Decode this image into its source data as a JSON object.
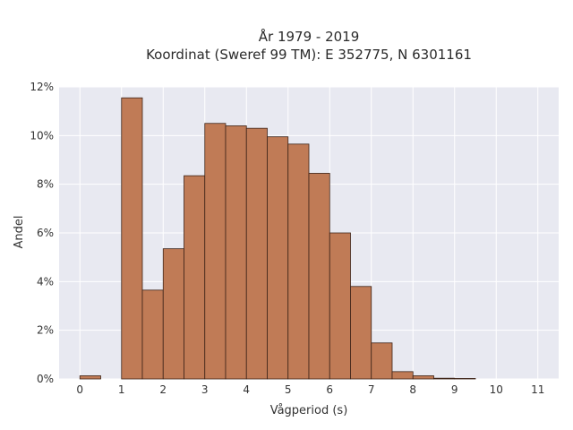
{
  "chart_data": {
    "type": "bar",
    "title": "År 1979 - 2019",
    "subtitle": "Koordinat (Sweref 99 TM): E 352775, N 6301161",
    "xlabel": "Vågperiod (s)",
    "ylabel": "Andel",
    "xlim": [
      -0.5,
      11.5
    ],
    "ylim": [
      0,
      12
    ],
    "x_ticks": [
      "0",
      "1",
      "2",
      "3",
      "4",
      "5",
      "6",
      "7",
      "8",
      "9",
      "10",
      "11"
    ],
    "y_ticks": [
      "0%",
      "2%",
      "4%",
      "6%",
      "8%",
      "10%",
      "12%"
    ],
    "bin_width": 0.5,
    "bins": [
      {
        "x": 0.0,
        "y": 0.13
      },
      {
        "x": 1.0,
        "y": 11.55
      },
      {
        "x": 1.5,
        "y": 3.65
      },
      {
        "x": 2.0,
        "y": 5.35
      },
      {
        "x": 2.5,
        "y": 8.35
      },
      {
        "x": 3.0,
        "y": 10.5
      },
      {
        "x": 3.5,
        "y": 10.4
      },
      {
        "x": 4.0,
        "y": 10.3
      },
      {
        "x": 4.5,
        "y": 9.95
      },
      {
        "x": 5.0,
        "y": 9.65
      },
      {
        "x": 5.5,
        "y": 8.45
      },
      {
        "x": 6.0,
        "y": 6.0
      },
      {
        "x": 6.5,
        "y": 3.8
      },
      {
        "x": 7.0,
        "y": 1.48
      },
      {
        "x": 7.5,
        "y": 0.3
      },
      {
        "x": 8.0,
        "y": 0.13
      },
      {
        "x": 8.5,
        "y": 0.03
      },
      {
        "x": 9.0,
        "y": 0.02
      }
    ],
    "bar_color": "#c07b56",
    "bar_edge_color": "#3d2418",
    "plot_bg": "#e8e9f1",
    "grid": true
  }
}
